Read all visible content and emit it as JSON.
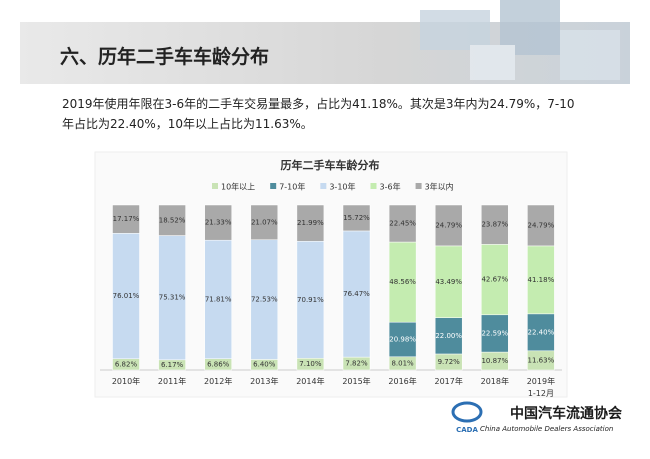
{
  "header": {
    "title": "六、历年二手车车龄分布"
  },
  "paragraph": "2019年使用年限在3-6年的二手车交易量最多，占比为41.18%。其次是3年内为24.79%，7-10年占比为22.40%，10年以上占比为11.63%。",
  "chart_data": {
    "type": "stacked-bar",
    "title": "历年二手车车龄分布",
    "categories": [
      "2010年",
      "2011年",
      "2012年",
      "2013年",
      "2014年",
      "2015年",
      "2016年",
      "2017年",
      "2018年",
      "2019年\n1-12月"
    ],
    "series": [
      {
        "name": "10年以上",
        "color": "#c9e3b5",
        "values": [
          6.82,
          6.17,
          6.86,
          6.4,
          7.1,
          7.82,
          8.01,
          9.72,
          10.87,
          11.63
        ],
        "value_labels": [
          "6.82%",
          "6.17%",
          "6.86%",
          "6.40%",
          "7.10%",
          "7.82%",
          "8.01%",
          "9.72%",
          "10.87%",
          "11.63%"
        ]
      },
      {
        "name": "7-10年",
        "color": "#4f8c9d",
        "values": [
          null,
          null,
          null,
          null,
          null,
          null,
          20.98,
          22.0,
          22.59,
          22.4
        ],
        "value_labels": [
          null,
          null,
          null,
          null,
          null,
          null,
          "20.98%",
          "22.00%",
          "22.59%",
          "22.40%"
        ]
      },
      {
        "name": "3-10年",
        "color": "#c6daf0",
        "values": [
          76.01,
          75.31,
          71.81,
          72.53,
          70.91,
          76.47,
          null,
          null,
          null,
          null
        ],
        "value_labels": [
          "76.01%",
          "75.31%",
          "71.81%",
          "72.53%",
          "70.91%",
          "76.47%",
          null,
          null,
          null,
          null
        ]
      },
      {
        "name": "3-6年",
        "color": "#c4ecb0",
        "values": [
          null,
          null,
          null,
          null,
          null,
          null,
          48.56,
          43.49,
          42.67,
          41.18
        ],
        "value_labels": [
          null,
          null,
          null,
          null,
          null,
          null,
          "48.56%",
          "43.49%",
          "42.67%",
          "41.18%"
        ]
      },
      {
        "name": "3年以内",
        "color": "#a9a9a9",
        "values": [
          17.17,
          18.52,
          21.33,
          21.07,
          21.99,
          15.72,
          22.45,
          24.79,
          23.87,
          24.79
        ],
        "value_labels": [
          "17.17%",
          "18.52%",
          "21.33%",
          "21.07%",
          "21.99%",
          "15.72%",
          "22.45%",
          "24.79%",
          "23.87%",
          "24.79%"
        ]
      }
    ],
    "legend": "top"
  },
  "logo": {
    "name": "中国汽车流通协会",
    "english": "China Automobile Dealers Association",
    "abbr": "CADA"
  }
}
